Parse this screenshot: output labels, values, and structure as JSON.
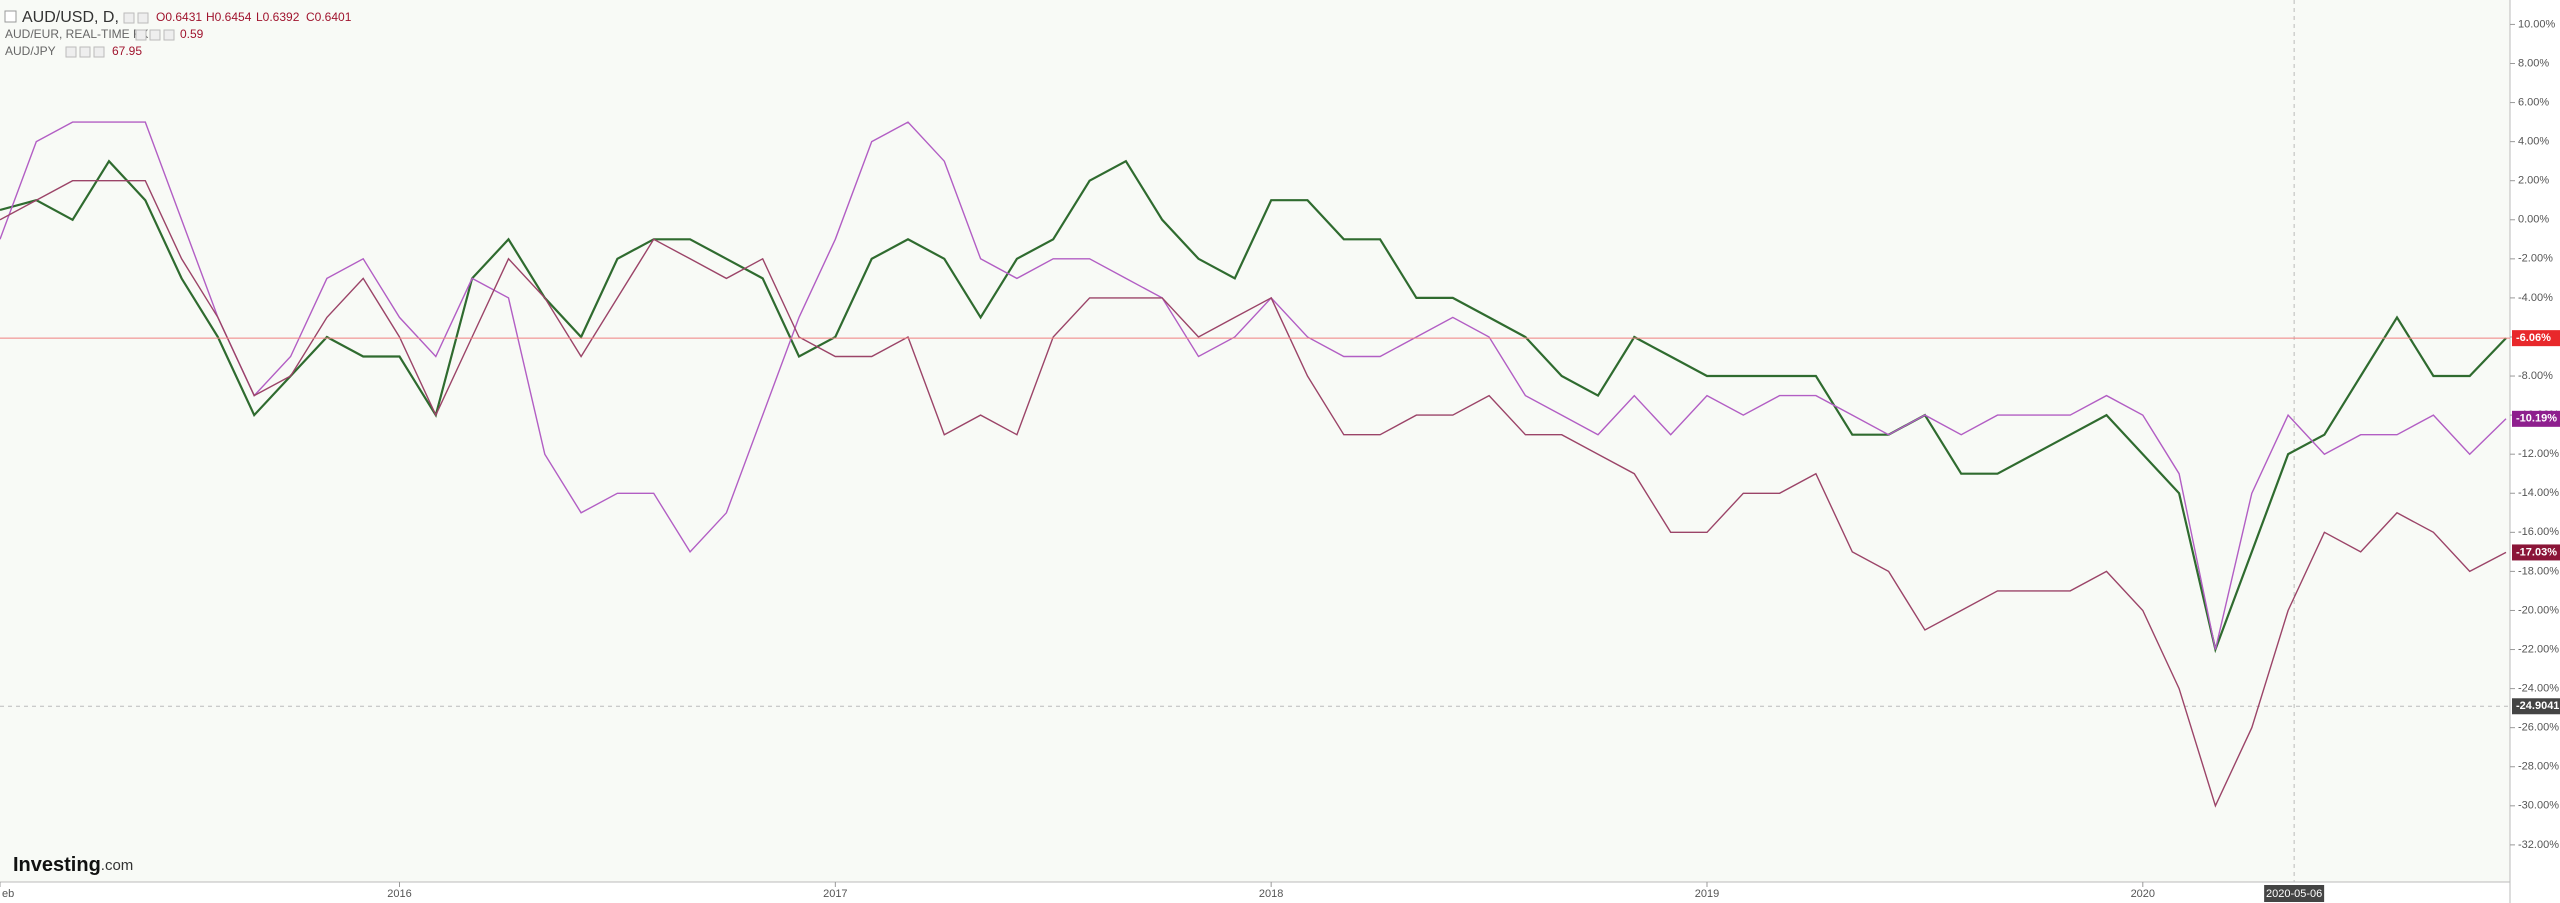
{
  "chart_data": {
    "type": "line",
    "header": {
      "ohlc": [
        "O0.6431",
        "H0.6454",
        "L0.6392",
        "C0.6401"
      ]
    },
    "categories": [
      "eb",
      null,
      null,
      null,
      null,
      null,
      null,
      null,
      null,
      null,
      null,
      "2016",
      null,
      null,
      null,
      null,
      null,
      null,
      null,
      null,
      null,
      null,
      null,
      "2017",
      null,
      null,
      null,
      null,
      null,
      null,
      null,
      null,
      null,
      null,
      null,
      "2018",
      null,
      null,
      null,
      null,
      null,
      null,
      null,
      null,
      null,
      null,
      null,
      "2019",
      null,
      null,
      null,
      null,
      null,
      null,
      null,
      null,
      null,
      null,
      null,
      "2020",
      null,
      null,
      null,
      null,
      null,
      null,
      null,
      null,
      null,
      null
    ],
    "series": [
      {
        "name": "AUD/USD, D,",
        "color": "#2f6b2f",
        "values": [
          0.5,
          1,
          0,
          3,
          1,
          -3,
          -6,
          -10,
          -8,
          -6,
          -7,
          -7,
          -10,
          -3,
          -1,
          -4,
          -6,
          -2,
          -1,
          -1,
          -2,
          -3,
          -7,
          -6,
          -2,
          -1,
          -2,
          -5,
          -2,
          -1,
          2,
          3,
          0,
          -2,
          -3,
          1,
          1,
          -1,
          -1,
          -4,
          -4,
          -5,
          -6,
          -8,
          -9,
          -6,
          -7,
          -8,
          -8,
          -8,
          -8,
          -11,
          -11,
          -10,
          -13,
          -13,
          -12,
          -11,
          -10,
          -12,
          -14,
          -22,
          -17,
          -12,
          -11,
          -8,
          -5,
          -8,
          -8,
          -6.06
        ],
        "last": {
          "value": -6.06,
          "label": "-6.06%"
        },
        "label_color": "#e8282b"
      },
      {
        "name": "AUD/EUR, REAL-TIME FX",
        "color": "#b25ec4",
        "price": 0.59,
        "values": [
          -1,
          4,
          5,
          5,
          5,
          0,
          -5,
          -9,
          -7,
          -3,
          -2,
          -5,
          -7,
          -3,
          -4,
          -12,
          -15,
          -14,
          -14,
          -17,
          -15,
          -10,
          -5,
          -1,
          4,
          5,
          3,
          -2,
          -3,
          -2,
          -2,
          -3,
          -4,
          -7,
          -6,
          -4,
          -6,
          -7,
          -7,
          -6,
          -5,
          -6,
          -9,
          -10,
          -11,
          -9,
          -11,
          -9,
          -10,
          -9,
          -9,
          -10,
          -11,
          -10,
          -11,
          -10,
          -10,
          -10,
          -9,
          -10,
          -13,
          -22,
          -14,
          -10,
          -12,
          -11,
          -11,
          -10,
          -12,
          -10.19
        ],
        "last": {
          "value": -10.19,
          "label": "-10.19%"
        },
        "label_color": "#8e1f8e"
      },
      {
        "name": "AUD/JPY",
        "color": "#9b4468",
        "price": 67.95,
        "values": [
          0,
          1,
          2,
          2,
          2,
          -2,
          -5,
          -9,
          -8,
          -5,
          -3,
          -6,
          -10,
          -6,
          -2,
          -4,
          -7,
          -4,
          -1,
          -2,
          -3,
          -2,
          -6,
          -7,
          -7,
          -6,
          -11,
          -10,
          -11,
          -6,
          -4,
          -4,
          -4,
          -6,
          -5,
          -4,
          -8,
          -11,
          -11,
          -10,
          -10,
          -9,
          -11,
          -11,
          -12,
          -13,
          -16,
          -16,
          -14,
          -14,
          -13,
          -17,
          -18,
          -21,
          -20,
          -19,
          -19,
          -19,
          -18,
          -20,
          -24,
          -30,
          -26,
          -20,
          -16,
          -17,
          -15,
          -16,
          -18,
          -17.03
        ],
        "last": {
          "value": -17.03,
          "label": "-17.03%"
        },
        "label_color": "#8b1538"
      }
    ],
    "ylim": [
      -33.9,
      11.25
    ],
    "yticks": [
      {
        "value": 10,
        "label": "10.00%"
      },
      {
        "value": 8,
        "label": "8.00%"
      },
      {
        "value": 6,
        "label": "6.00%"
      },
      {
        "value": 4,
        "label": "4.00%"
      },
      {
        "value": 2,
        "label": "2.00%"
      },
      {
        "value": 0,
        "label": "0.00%"
      },
      {
        "value": -2,
        "label": "-2.00%"
      },
      {
        "value": -4,
        "label": "-4.00%"
      },
      {
        "value": -6,
        "label": "-6.00%"
      },
      {
        "value": -8,
        "label": "-8.00%"
      },
      {
        "value": -10,
        "label": "-10.00%"
      },
      {
        "value": -12,
        "label": "-12.00%"
      },
      {
        "value": -14,
        "label": "-14.00%"
      },
      {
        "value": -16,
        "label": "-16.00%"
      },
      {
        "value": -18,
        "label": "-18.00%"
      },
      {
        "value": -20,
        "label": "-20.00%"
      },
      {
        "value": -22,
        "label": "-22.00%"
      },
      {
        "value": -24,
        "label": "-24.00%"
      },
      {
        "value": -26,
        "label": "-26.00%"
      },
      {
        "value": -28,
        "label": "-28.00%"
      },
      {
        "value": -30,
        "label": "-30.00%"
      },
      {
        "value": -32,
        "label": "-32.00%"
      }
    ],
    "crosshair": {
      "date": "2020-05-06",
      "y": -24.9041
    }
  },
  "logo": {
    "brand": "Investing",
    "suffix": ".com"
  }
}
